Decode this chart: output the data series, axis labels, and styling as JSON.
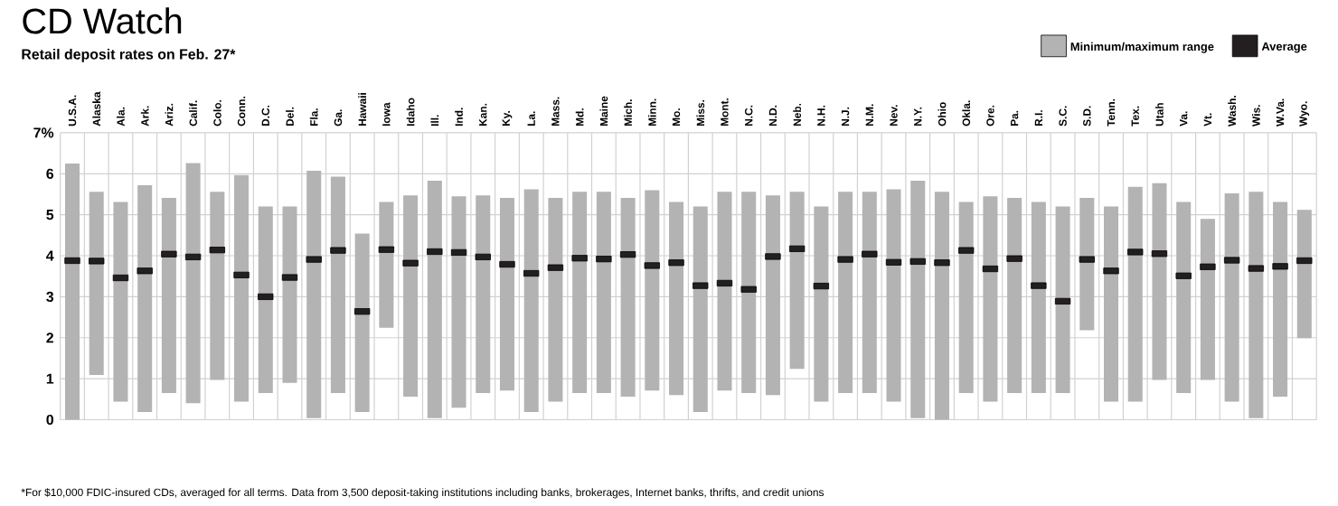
{
  "chart_data": {
    "type": "bar",
    "title": "CD Watch",
    "subtitle": "Retail deposit rates on Feb. 27*",
    "categories": [
      "U.S.A.",
      "Alaska",
      "Ala.",
      "Ark.",
      "Ariz.",
      "Calif.",
      "Colo.",
      "Conn.",
      "D.C.",
      "Del.",
      "Fla.",
      "Ga.",
      "Hawaii",
      "Iowa",
      "Idaho",
      "Ill.",
      "Ind.",
      "Kan.",
      "Ky.",
      "La.",
      "Mass.",
      "Md.",
      "Maine",
      "Mich.",
      "Minn.",
      "Mo.",
      "Miss.",
      "Mont.",
      "N.C.",
      "N.D.",
      "Neb.",
      "N.H.",
      "N.J.",
      "N.M.",
      "Nev.",
      "N.Y.",
      "Ohio",
      "Okla.",
      "Ore.",
      "Pa.",
      "R.I.",
      "S.C.",
      "S.D.",
      "Tenn.",
      "Tex.",
      "Utah",
      "Va.",
      "Vt.",
      "Wash.",
      "Wis.",
      "W.Va.",
      "Wyo."
    ],
    "ylim": [
      0,
      7
    ],
    "yticks": [
      0,
      1,
      2,
      3,
      4,
      5,
      6,
      {
        "value": 7,
        "label": "7%"
      }
    ],
    "grid": true,
    "legend": "top right",
    "marker": "square",
    "series": [
      {
        "name": "Minimum/maximum range",
        "color": "#b3b3b3",
        "base": [
          0,
          1.09,
          0.44,
          0.19,
          0.65,
          0.4,
          0.97,
          0.44,
          0.65,
          0.9,
          0.04,
          0.65,
          0.19,
          2.24,
          0.56,
          0.04,
          0.29,
          0.65,
          0.71,
          0.19,
          0.44,
          0.65,
          0.65,
          0.56,
          0.71,
          0.6,
          0.19,
          0.71,
          0.65,
          0.6,
          1.24,
          0.44,
          0.65,
          0.65,
          0.44,
          0.04,
          0,
          0.65,
          0.44,
          0.65,
          0.65,
          0.65,
          2.18,
          0.44,
          0.44,
          0.97,
          0.65,
          0.97,
          0.44,
          0.04,
          0.56,
          1.99
        ],
        "values": [
          6.25,
          4.47,
          4.87,
          5.53,
          4.76,
          5.86,
          4.59,
          5.53,
          4.55,
          4.3,
          6.03,
          5.28,
          4.35,
          3.07,
          4.91,
          5.79,
          5.16,
          4.82,
          4.7,
          5.43,
          4.97,
          4.91,
          4.91,
          4.85,
          4.89,
          4.71,
          5.01,
          4.85,
          4.91,
          4.87,
          4.32,
          4.76,
          4.91,
          4.91,
          5.18,
          5.79,
          5.56,
          4.66,
          5.01,
          4.76,
          4.66,
          4.55,
          3.23,
          4.76,
          5.24,
          4.8,
          4.66,
          3.93,
          5.08,
          5.52,
          4.75,
          3.13
        ]
      },
      {
        "name": "Average",
        "type": "scatter",
        "color": "#231f20",
        "values": [
          3.88,
          3.87,
          3.46,
          3.63,
          4.04,
          3.97,
          4.14,
          3.53,
          3.0,
          3.47,
          3.91,
          4.13,
          2.64,
          4.15,
          3.82,
          4.1,
          4.08,
          3.97,
          3.79,
          3.57,
          3.71,
          3.94,
          3.92,
          4.03,
          3.76,
          3.83,
          3.27,
          3.33,
          3.18,
          3.98,
          4.17,
          3.26,
          3.91,
          4.04,
          3.84,
          3.86,
          3.83,
          4.13,
          3.68,
          3.93,
          3.27,
          2.89,
          3.91,
          3.63,
          4.09,
          4.05,
          3.51,
          3.73,
          3.89,
          3.69,
          3.74,
          3.88
        ]
      }
    ],
    "annotations": [
      "*For $10,000 FDIC-insured CDs, averaged for all terms. Data from 3,500 deposit-taking institutions including banks, brokerages, Internet banks, thrifts, and credit unions"
    ]
  }
}
